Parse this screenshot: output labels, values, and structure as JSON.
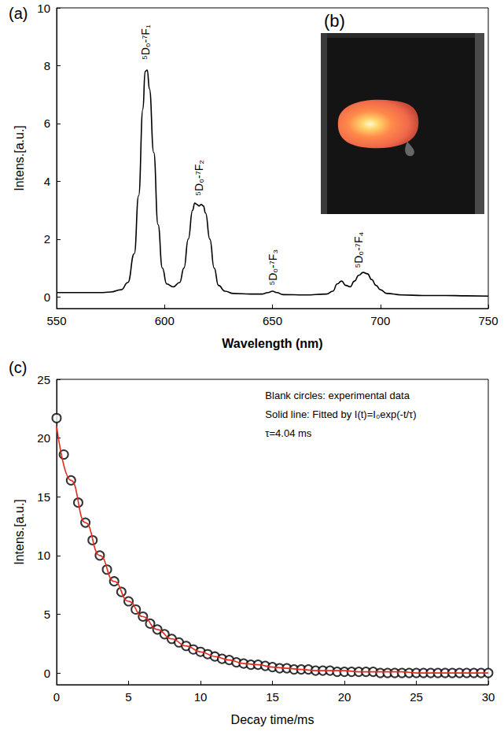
{
  "chart_data": [
    {
      "type": "line",
      "title": "(a)",
      "x_label": "Wavelength (nm)",
      "y_label": "Intens.[a.u.]",
      "xlim": [
        550,
        750
      ],
      "xticks": [
        550,
        600,
        650,
        700,
        750
      ],
      "ylim": [
        -0.4,
        10
      ],
      "yticks": [
        0,
        2,
        4,
        6,
        8,
        10
      ],
      "grid": false,
      "color": "#000000",
      "line_style": "solid",
      "x": [
        550,
        560,
        570,
        575,
        580,
        583,
        586,
        588,
        590,
        591,
        592,
        593,
        595,
        597,
        599,
        601,
        604,
        607,
        609,
        611,
        613,
        614,
        615,
        616,
        617,
        618,
        619,
        621,
        623,
        625,
        628,
        632,
        640,
        645,
        648,
        650,
        652,
        655,
        665,
        675,
        678,
        680,
        682,
        684,
        686,
        688,
        690,
        692,
        694,
        696,
        698,
        700,
        703,
        710,
        720,
        730,
        740,
        750
      ],
      "values": [
        0.15,
        0.15,
        0.15,
        0.17,
        0.25,
        0.5,
        1.5,
        3.5,
        6.5,
        7.8,
        7.85,
        7.2,
        5.0,
        2.5,
        1.0,
        0.45,
        0.35,
        0.5,
        1.0,
        2.0,
        3.0,
        3.25,
        3.2,
        3.15,
        3.2,
        3.15,
        2.9,
        2.0,
        1.0,
        0.4,
        0.2,
        0.12,
        0.1,
        0.1,
        0.15,
        0.2,
        0.15,
        0.08,
        0.07,
        0.1,
        0.2,
        0.45,
        0.55,
        0.4,
        0.35,
        0.55,
        0.75,
        0.85,
        0.8,
        0.6,
        0.4,
        0.25,
        0.12,
        0.07,
        0.05,
        0.05,
        0.04,
        0.03
      ],
      "annotations": [
        {
          "text": "⁵D₀-⁷F₁",
          "x": 591,
          "y": 8.2
        },
        {
          "text": "⁵D₀-⁷F₂",
          "x": 616,
          "y": 3.5
        },
        {
          "text": "⁵D₀-⁷F₃",
          "x": 650,
          "y": 0.4
        },
        {
          "text": "⁵D₀-⁷F₄",
          "x": 690,
          "y": 1.0
        }
      ]
    },
    {
      "type": "scatter",
      "title": "(c)",
      "x_label": "Decay time/ms",
      "y_label": "Intens.[a.u.]",
      "xlim": [
        0,
        30
      ],
      "xticks": [
        0,
        5,
        10,
        15,
        20,
        25,
        30
      ],
      "ylim": [
        -1,
        25
      ],
      "yticks": [
        0,
        5,
        10,
        15,
        20,
        25
      ],
      "grid": false,
      "series": [
        {
          "type": "scatter",
          "marker": "open circle",
          "color": "#000000",
          "x": [
            0,
            0.5,
            1,
            1.5,
            2,
            2.5,
            3,
            3.5,
            4,
            4.5,
            5,
            5.5,
            6,
            6.5,
            7,
            7.5,
            8,
            8.5,
            9,
            9.5,
            10,
            10.5,
            11,
            11.5,
            12,
            12.5,
            13,
            13.5,
            14,
            14.5,
            15,
            15.5,
            16,
            16.5,
            17,
            17.5,
            18,
            18.5,
            19,
            19.5,
            20,
            20.5,
            21,
            21.5,
            22,
            22.5,
            23,
            23.5,
            24,
            24.5,
            25,
            25.5,
            26,
            26.5,
            27,
            27.5,
            28,
            28.5,
            29,
            29.5,
            30
          ],
          "values": [
            21.7,
            18.6,
            16.4,
            14.5,
            12.8,
            11.3,
            10.0,
            8.8,
            7.8,
            6.9,
            6.1,
            5.4,
            4.8,
            4.2,
            3.7,
            3.3,
            2.9,
            2.6,
            2.3,
            2.0,
            1.8,
            1.6,
            1.4,
            1.2,
            1.1,
            0.9,
            0.8,
            0.7,
            0.7,
            0.6,
            0.5,
            0.4,
            0.4,
            0.3,
            0.3,
            0.3,
            0.2,
            0.2,
            0.2,
            0.1,
            0.1,
            0.1,
            0.1,
            0.1,
            0.1,
            0.0,
            0.0,
            0.0,
            0.0,
            0.0,
            0.0,
            0.0,
            0.0,
            0.0,
            0.0,
            0.0,
            0.0,
            0.0,
            0.0,
            0.0,
            0.0
          ]
        },
        {
          "type": "line",
          "line_style": "solid",
          "color": "#e8281e",
          "x": [
            0,
            1,
            2,
            3,
            4,
            5,
            6,
            7,
            8,
            9,
            10,
            11,
            12,
            13,
            14,
            15,
            16,
            17,
            18,
            19,
            20,
            21,
            22,
            23,
            24,
            25,
            26,
            27,
            28,
            29,
            30
          ],
          "values": [
            21.0,
            16.4,
            12.8,
            10.0,
            7.8,
            6.1,
            4.8,
            3.7,
            2.9,
            2.3,
            1.8,
            1.4,
            1.1,
            0.8,
            0.7,
            0.5,
            0.4,
            0.3,
            0.2,
            0.2,
            0.2,
            0.1,
            0.1,
            0.1,
            0.1,
            0.0,
            0.0,
            0.0,
            0.0,
            0.0,
            0.0
          ]
        }
      ],
      "annotations": [
        {
          "text": "Blank circles: experimental data",
          "x": 14.5,
          "y": 23.6
        },
        {
          "text": "Solid line: Fitted by I(t)=I₀exp(-t/τ)",
          "x": 14.5,
          "y": 22.0
        },
        {
          "text": "τ=4.04 ms",
          "x": 14.5,
          "y": 20.4
        }
      ]
    }
  ],
  "photo": {
    "label": "(b)"
  }
}
